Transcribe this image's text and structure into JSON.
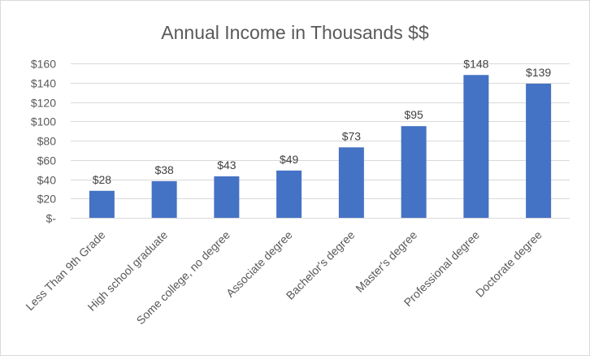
{
  "chart_data": {
    "type": "bar",
    "title": "Annual Income in Thousands $$",
    "xlabel": "",
    "ylabel": "",
    "categories": [
      "Less Than 9th Grade",
      "High school graduate",
      "Some college, no degree",
      "Associate degree",
      "Bachelor's degree",
      "Master's degree",
      "Professional degree",
      "Doctorate degree"
    ],
    "values": [
      28,
      38,
      43,
      49,
      73,
      95,
      148,
      139
    ],
    "data_labels": [
      "$28",
      "$38",
      "$43",
      "$49",
      "$73",
      "$95",
      "$148",
      "$139"
    ],
    "ylim": [
      0,
      160
    ],
    "y_ticks": [
      0,
      20,
      40,
      60,
      80,
      100,
      120,
      140,
      160
    ],
    "y_tick_labels": [
      "$-",
      "$20",
      "$40",
      "$60",
      "$80",
      "$100",
      "$120",
      "$140",
      "$160"
    ],
    "bar_color": "#4472C4",
    "grid": true,
    "legend": "none"
  }
}
